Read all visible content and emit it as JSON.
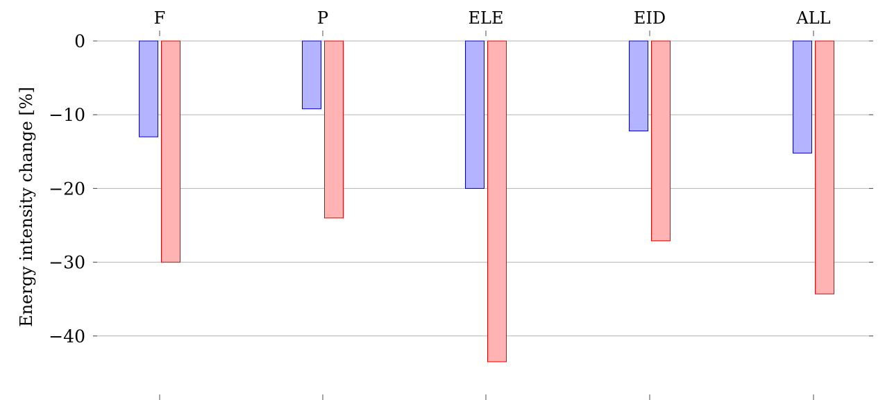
{
  "chart_data": {
    "type": "bar",
    "orientation": "vertical",
    "categories": [
      "F",
      "P",
      "ELE",
      "EID",
      "ALL"
    ],
    "category_axis_position": "top",
    "series": [
      {
        "values": [
          -13,
          -9.2,
          -20,
          -12.2,
          -15.2
        ],
        "color": "#b3b3ff",
        "stroke": "#0000cc"
      },
      {
        "values": [
          -30,
          -24,
          -43.5,
          -27.1,
          -34.3
        ],
        "color": "#ffb3b3",
        "stroke": "#e60000"
      }
    ],
    "ylabel": "Energy intensity change [%]",
    "yticks": [
      0,
      -10,
      -20,
      -30,
      -40
    ],
    "ytick_labels": [
      "0",
      "−10",
      "−20",
      "−30",
      "−40"
    ],
    "ylim": [
      -45.5,
      0.5
    ],
    "grid": "horizontal",
    "legend": "none"
  }
}
